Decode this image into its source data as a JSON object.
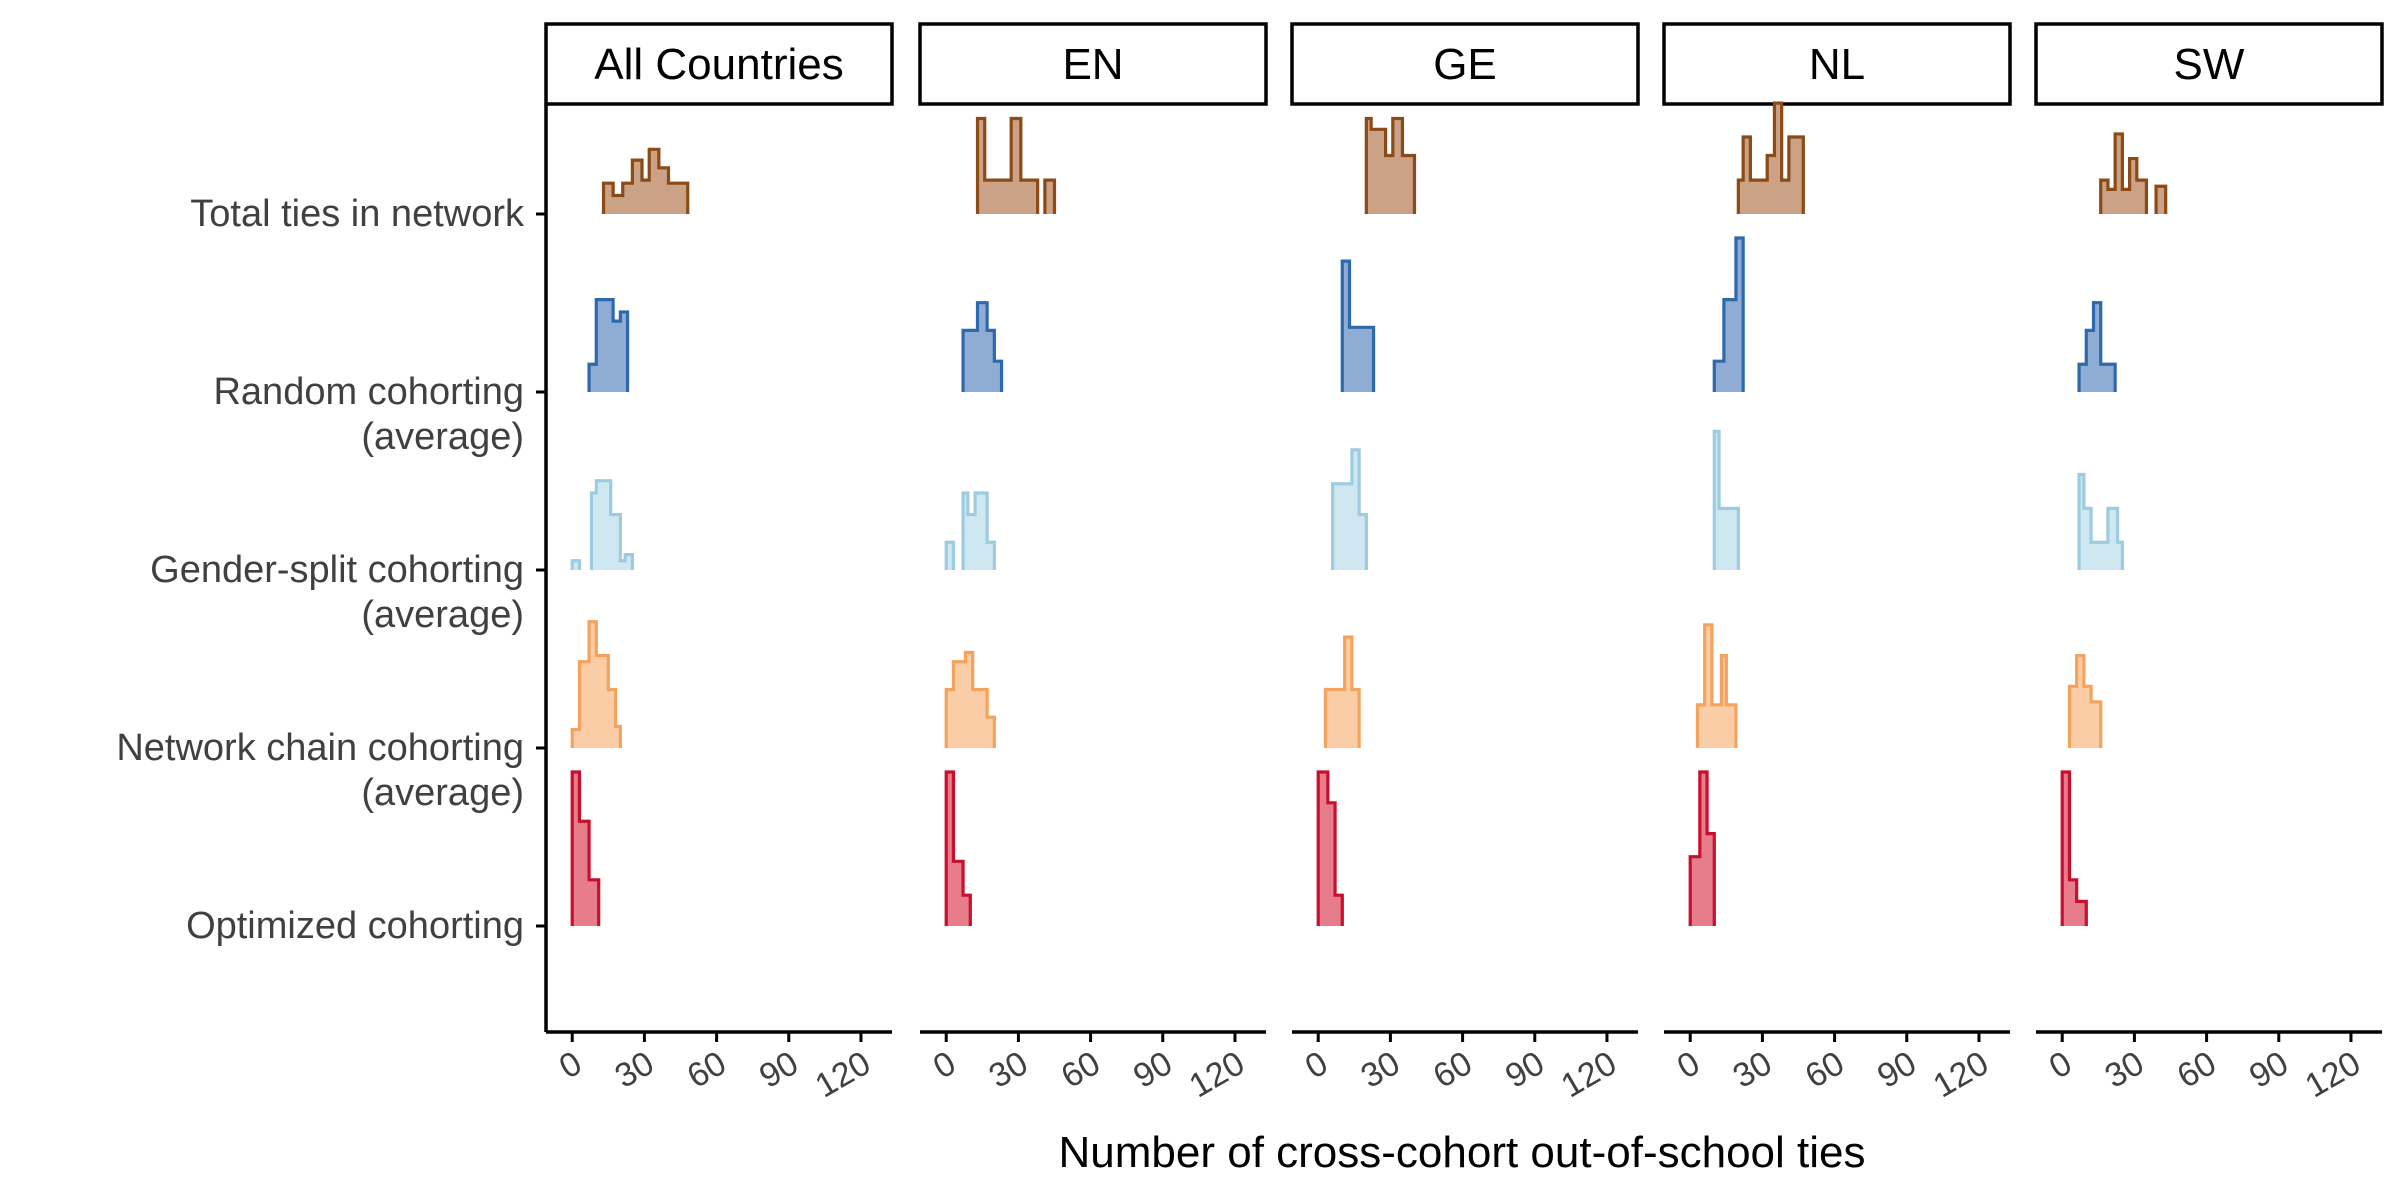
{
  "chart_data": {
    "type": "histogram",
    "xlabel": "Number of cross-cohort out-of-school ties",
    "ylabel": "",
    "xlim": [
      -3,
      125
    ],
    "xticks": [
      "0",
      "30",
      "60",
      "90",
      "120"
    ],
    "rows": [
      "Total ties in network",
      "Random cohorting\n(average)",
      "Gender-split cohorting\n(average)",
      "Network chain cohorting\n(average)",
      "Optimized cohorting"
    ],
    "colors": {
      "Total ties in network": {
        "stroke": "#8C4A16",
        "fill": "#CBA286"
      },
      "Random cohorting\n(average)": {
        "stroke": "#2F69AD",
        "fill": "#8FADD4"
      },
      "Gender-split cohorting\n(average)": {
        "stroke": "#9DCCE0",
        "fill": "#CFE7F1"
      },
      "Network chain cohorting\n(average)": {
        "stroke": "#F4A35E",
        "fill": "#FBCDA6"
      },
      "Optimized cohorting": {
        "stroke": "#C8102E",
        "fill": "#E77C8A"
      }
    },
    "panels": [
      {
        "name": "All Countries",
        "series": [
          {
            "row": "Total ties in network",
            "bins": [
              [
                13,
                17,
                0.2
              ],
              [
                17,
                21,
                0.12
              ],
              [
                21,
                25,
                0.2
              ],
              [
                25,
                29,
                0.35
              ],
              [
                29,
                32,
                0.22
              ],
              [
                32,
                36,
                0.42
              ],
              [
                36,
                40,
                0.3
              ],
              [
                40,
                44,
                0.2
              ],
              [
                44,
                48,
                0.2
              ]
            ]
          },
          {
            "row": "Random cohorting\n(average)",
            "bins": [
              [
                7,
                10,
                0.18
              ],
              [
                10,
                17,
                0.6
              ],
              [
                17,
                20,
                0.46
              ],
              [
                20,
                23,
                0.52
              ]
            ]
          },
          {
            "row": "Gender-split cohorting\n(average)",
            "bins": [
              [
                0,
                3,
                0.06
              ],
              [
                8,
                10,
                0.5
              ],
              [
                10,
                16,
                0.58
              ],
              [
                16,
                20,
                0.36
              ],
              [
                20,
                22,
                0.06
              ],
              [
                22,
                25,
                0.1
              ]
            ]
          },
          {
            "row": "Network chain cohorting\n(average)",
            "bins": [
              [
                0,
                3,
                0.12
              ],
              [
                3,
                7,
                0.56
              ],
              [
                7,
                10,
                0.82
              ],
              [
                10,
                15,
                0.6
              ],
              [
                15,
                18,
                0.38
              ],
              [
                18,
                20,
                0.14
              ]
            ]
          },
          {
            "row": "Optimized cohorting",
            "bins": [
              [
                0,
                3,
                1.0
              ],
              [
                3,
                7,
                0.68
              ],
              [
                7,
                11,
                0.3
              ]
            ]
          }
        ]
      },
      {
        "name": "EN",
        "series": [
          {
            "row": "Total ties in network",
            "bins": [
              [
                13,
                16,
                0.62
              ],
              [
                16,
                20,
                0.22
              ],
              [
                20,
                27,
                0.22
              ],
              [
                27,
                31,
                0.62
              ],
              [
                31,
                38,
                0.22
              ],
              [
                41,
                45,
                0.22
              ]
            ]
          },
          {
            "row": "Random cohorting\n(average)",
            "bins": [
              [
                7,
                13,
                0.4
              ],
              [
                13,
                17,
                0.58
              ],
              [
                17,
                20,
                0.4
              ],
              [
                20,
                23,
                0.2
              ]
            ]
          },
          {
            "row": "Gender-split cohorting\n(average)",
            "bins": [
              [
                0,
                3,
                0.18
              ],
              [
                7,
                9,
                0.5
              ],
              [
                9,
                12,
                0.36
              ],
              [
                12,
                15,
                0.5
              ],
              [
                15,
                17,
                0.5
              ],
              [
                17,
                20,
                0.18
              ]
            ]
          },
          {
            "row": "Network chain cohorting\n(average)",
            "bins": [
              [
                0,
                3,
                0.38
              ],
              [
                3,
                8,
                0.56
              ],
              [
                8,
                11,
                0.62
              ],
              [
                11,
                17,
                0.38
              ],
              [
                17,
                20,
                0.2
              ]
            ]
          },
          {
            "row": "Optimized cohorting",
            "bins": [
              [
                0,
                3,
                1.0
              ],
              [
                3,
                7,
                0.42
              ],
              [
                7,
                10,
                0.2
              ]
            ]
          }
        ]
      },
      {
        "name": "GE",
        "series": [
          {
            "row": "Total ties in network",
            "bins": [
              [
                20,
                22,
                0.62
              ],
              [
                22,
                28,
                0.55
              ],
              [
                28,
                31,
                0.38
              ],
              [
                31,
                35,
                0.62
              ],
              [
                35,
                40,
                0.38
              ]
            ]
          },
          {
            "row": "Random cohorting\n(average)",
            "bins": [
              [
                10,
                13,
                0.85
              ],
              [
                13,
                23,
                0.42
              ]
            ]
          },
          {
            "row": "Gender-split cohorting\n(average)",
            "bins": [
              [
                6,
                14,
                0.56
              ],
              [
                14,
                17,
                0.78
              ],
              [
                17,
                20,
                0.36
              ]
            ]
          },
          {
            "row": "Network chain cohorting\n(average)",
            "bins": [
              [
                3,
                11,
                0.38
              ],
              [
                11,
                14,
                0.72
              ],
              [
                14,
                17,
                0.38
              ]
            ]
          },
          {
            "row": "Optimized cohorting",
            "bins": [
              [
                0,
                4,
                1.0
              ],
              [
                4,
                7,
                0.8
              ],
              [
                7,
                10,
                0.2
              ]
            ]
          }
        ]
      },
      {
        "name": "NL",
        "series": [
          {
            "row": "Total ties in network",
            "bins": [
              [
                20,
                22,
                0.22
              ],
              [
                22,
                25,
                0.5
              ],
              [
                25,
                32,
                0.22
              ],
              [
                32,
                35,
                0.38
              ],
              [
                35,
                38,
                0.72
              ],
              [
                38,
                41,
                0.22
              ],
              [
                41,
                47,
                0.5
              ]
            ]
          },
          {
            "row": "Random cohorting\n(average)",
            "bins": [
              [
                10,
                14,
                0.2
              ],
              [
                14,
                19,
                0.6
              ],
              [
                19,
                22,
                1.0
              ]
            ]
          },
          {
            "row": "Gender-split cohorting\n(average)",
            "bins": [
              [
                10,
                12,
                0.9
              ],
              [
                12,
                16,
                0.4
              ],
              [
                16,
                20,
                0.4
              ]
            ]
          },
          {
            "row": "Network chain cohorting\n(average)",
            "bins": [
              [
                3,
                6,
                0.28
              ],
              [
                6,
                9,
                0.8
              ],
              [
                9,
                13,
                0.28
              ],
              [
                13,
                15,
                0.6
              ],
              [
                15,
                19,
                0.28
              ]
            ]
          },
          {
            "row": "Optimized cohorting",
            "bins": [
              [
                0,
                4,
                0.45
              ],
              [
                4,
                7,
                1.0
              ],
              [
                7,
                10,
                0.6
              ]
            ]
          }
        ]
      },
      {
        "name": "SW",
        "series": [
          {
            "row": "Total ties in network",
            "bins": [
              [
                16,
                19,
                0.22
              ],
              [
                19,
                22,
                0.16
              ],
              [
                22,
                25,
                0.52
              ],
              [
                25,
                28,
                0.16
              ],
              [
                28,
                31,
                0.36
              ],
              [
                31,
                35,
                0.22
              ],
              [
                39,
                43,
                0.18
              ]
            ]
          },
          {
            "row": "Random cohorting\n(average)",
            "bins": [
              [
                7,
                10,
                0.18
              ],
              [
                10,
                13,
                0.4
              ],
              [
                13,
                16,
                0.58
              ],
              [
                16,
                22,
                0.18
              ]
            ]
          },
          {
            "row": "Gender-split cohorting\n(average)",
            "bins": [
              [
                7,
                9,
                0.62
              ],
              [
                9,
                12,
                0.4
              ],
              [
                12,
                19,
                0.18
              ],
              [
                19,
                23,
                0.4
              ],
              [
                23,
                25,
                0.18
              ]
            ]
          },
          {
            "row": "Network chain cohorting\n(average)",
            "bins": [
              [
                3,
                6,
                0.4
              ],
              [
                6,
                9,
                0.6
              ],
              [
                9,
                12,
                0.4
              ],
              [
                12,
                16,
                0.3
              ]
            ]
          },
          {
            "row": "Optimized cohorting",
            "bins": [
              [
                0,
                3,
                1.0
              ],
              [
                3,
                6,
                0.3
              ],
              [
                6,
                10,
                0.16
              ]
            ]
          }
        ]
      }
    ]
  }
}
